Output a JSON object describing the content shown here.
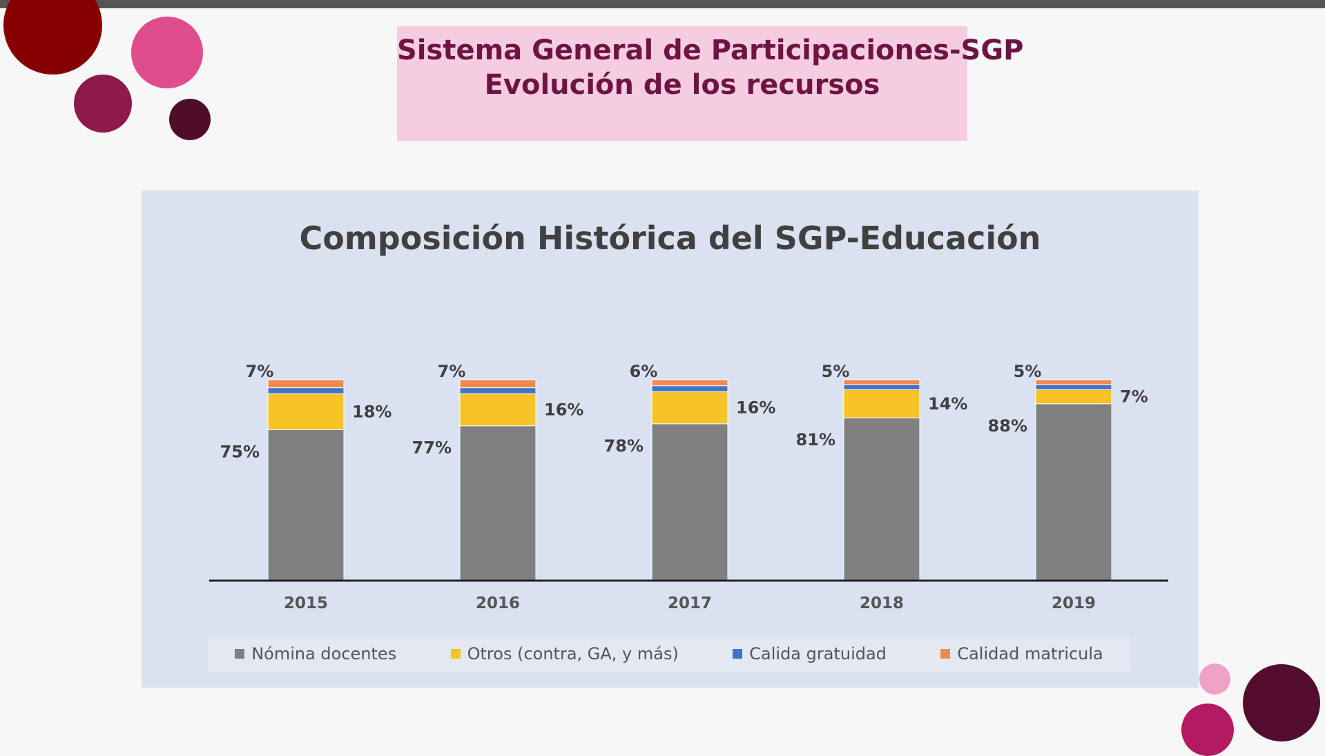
{
  "slide": {
    "title_line1": "Sistema General de Participaciones-SGP",
    "title_line2": "Evolución de los recursos"
  },
  "colors": {
    "nomina": "#808080",
    "otros": "#f7c327",
    "gratuidad": "#4472c4",
    "matricula": "#ed8b4e"
  },
  "chart_data": {
    "type": "bar",
    "stacked": true,
    "title": "Composición Histórica del SGP-Educación",
    "categories": [
      "2015",
      "2016",
      "2017",
      "2018",
      "2019"
    ],
    "series": [
      {
        "name": "Nómina docentes",
        "values": [
          75,
          77,
          78,
          81,
          88
        ],
        "labels": [
          "75%",
          "77%",
          "78%",
          "81%",
          "88%"
        ]
      },
      {
        "name": "Otros (contra, GA, y más)",
        "values": [
          18,
          16,
          16,
          14,
          7
        ],
        "labels": [
          "18%",
          "16%",
          "16%",
          "14%",
          "7%"
        ]
      },
      {
        "name": "Calida gratuidad",
        "values": [
          3,
          3,
          3,
          2.5,
          2.5
        ],
        "labels": []
      },
      {
        "name": "Calidad matricula",
        "values": [
          4,
          4,
          3,
          2.5,
          2.5
        ],
        "labels": []
      }
    ],
    "combined_top_labels": [
      "7%",
      "7%",
      "6%",
      "5%",
      "5%"
    ],
    "legend_position": "bottom",
    "grid": false
  }
}
